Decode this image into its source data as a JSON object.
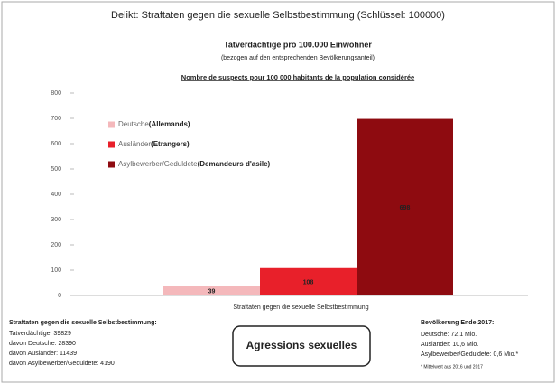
{
  "chart_data": {
    "type": "bar",
    "header": "Delikt: Straftaten gegen die sexuelle Selbstbestimmung (Schlüssel: 100000)",
    "title": "Tatverdächtige pro 100.000 Einwohner",
    "subtitle": "(bezogen auf den entsprechenden Bevölkerungsanteil)",
    "subtitle_fr": "Nombre de suspects pour 100 000 habitants de la population considérée",
    "categories": [
      "Straftaten gegen die sexuelle Selbstbestimmung"
    ],
    "series": [
      {
        "name": "Deutsche",
        "legend_note": "(Allemands)",
        "color": "#f4b8bb",
        "values": [
          39
        ]
      },
      {
        "name": "Ausländer",
        "legend_note": "(Etrangers)",
        "color": "#e8202a",
        "values": [
          108
        ]
      },
      {
        "name": "Asylbewerber/Geduldete",
        "legend_note": "(Demandeurs d'asile)",
        "color": "#8e0b10",
        "values": [
          698
        ]
      }
    ],
    "ylim": [
      0,
      800
    ],
    "yticks": [
      0,
      100,
      200,
      300,
      400,
      500,
      600,
      700,
      800
    ],
    "left_box": {
      "title": "Straftaten gegen die sexuelle Selbstbestimmung:",
      "lines": [
        "Tatverdächtige: 39829",
        "davon Deutsche: 28390",
        "davon Ausländer: 11439",
        "davon Asylbewerber/Geduldete: 4190"
      ]
    },
    "center_box": "Agressions sexuelles",
    "right_box": {
      "title": "Bevölkerung Ende 2017:",
      "lines": [
        "Deutsche: 72,1 Mio.",
        "Ausländer: 10,6 Mio.",
        "Asylbewerber/Geduldete: 0,6 Mio.*"
      ],
      "footnote": "* Mittelwert aus 2016 und 2017"
    }
  }
}
